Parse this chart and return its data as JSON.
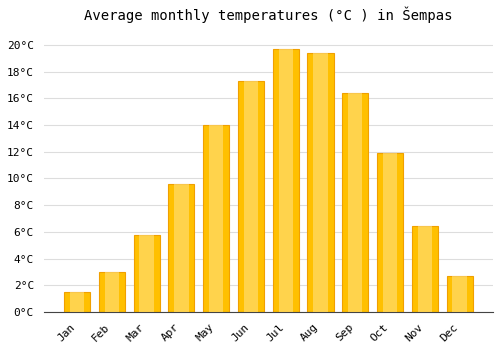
{
  "title": "Average monthly temperatures (°C ) in Šempas",
  "months": [
    "Jan",
    "Feb",
    "Mar",
    "Apr",
    "May",
    "Jun",
    "Jul",
    "Aug",
    "Sep",
    "Oct",
    "Nov",
    "Dec"
  ],
  "values": [
    1.5,
    3.0,
    5.8,
    9.6,
    14.0,
    17.3,
    19.7,
    19.4,
    16.4,
    11.9,
    6.4,
    2.7
  ],
  "bar_color": "#FFC000",
  "bar_edge_color": "#F0A000",
  "background_color": "#FFFFFF",
  "plot_bg_color": "#FFFFFF",
  "grid_color": "#DDDDDD",
  "ylim": [
    0,
    21
  ],
  "ytick_step": 2,
  "title_fontsize": 10,
  "tick_fontsize": 8,
  "font_family": "monospace",
  "bar_width": 0.75
}
